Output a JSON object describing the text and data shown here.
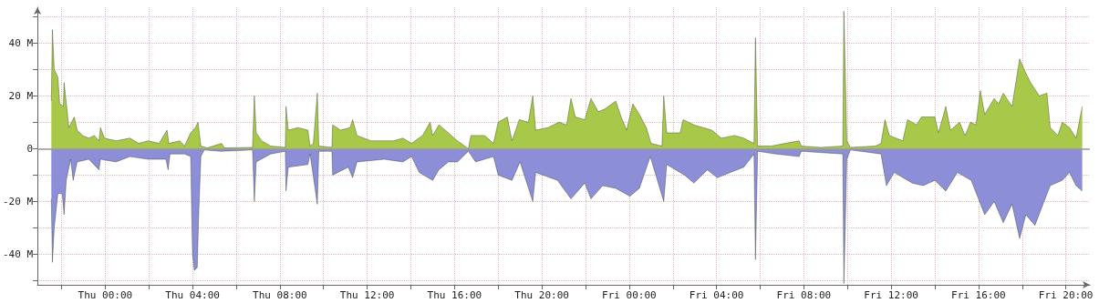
{
  "chart_data": {
    "type": "area",
    "xlim": [
      "--01-14T20:54",
      "--01-16T21:06"
    ],
    "ylim": [
      -51.5,
      53.5
    ],
    "xticks": [
      {
        "value": "--01-14T22:00",
        "label": null
      },
      {
        "value": "--01-15T00:00",
        "label": "Thu 00:00"
      },
      {
        "value": "--01-15T02:00",
        "label": null
      },
      {
        "value": "--01-15T04:00",
        "label": "Thu 04:00"
      },
      {
        "value": "--01-15T06:00",
        "label": null
      },
      {
        "value": "--01-15T08:00",
        "label": "Thu 08:00"
      },
      {
        "value": "--01-15T10:00",
        "label": null
      },
      {
        "value": "--01-15T12:00",
        "label": "Thu 12:00"
      },
      {
        "value": "--01-15T14:00",
        "label": null
      },
      {
        "value": "--01-15T16:00",
        "label": "Thu 16:00"
      },
      {
        "value": "--01-15T18:00",
        "label": null
      },
      {
        "value": "--01-15T20:00",
        "label": "Thu 20:00"
      },
      {
        "value": "--01-15T22:00",
        "label": null
      },
      {
        "value": "--01-16T00:00",
        "label": "Fri 00:00"
      },
      {
        "value": "--01-16T02:00",
        "label": null
      },
      {
        "value": "--01-16T04:00",
        "label": "Fri 04:00"
      },
      {
        "value": "--01-16T06:00",
        "label": null
      },
      {
        "value": "--01-16T08:00",
        "label": "Fri 08:00"
      },
      {
        "value": "--01-16T10:00",
        "label": null
      },
      {
        "value": "--01-16T12:00",
        "label": "Fri 12:00"
      },
      {
        "value": "--01-16T14:00",
        "label": null
      },
      {
        "value": "--01-16T16:00",
        "label": "Fri 16:00"
      },
      {
        "value": "--01-16T18:00",
        "label": null
      },
      {
        "value": "--01-16T20:00",
        "label": "Fri 20:00"
      }
    ],
    "yticks": [
      {
        "value": -50,
        "label": null
      },
      {
        "value": -40,
        "label": "-40 M"
      },
      {
        "value": -30,
        "label": null
      },
      {
        "value": -20,
        "label": "-20 M"
      },
      {
        "value": -10,
        "label": null
      },
      {
        "value": 0,
        "label": "0"
      },
      {
        "value": 10,
        "label": null
      },
      {
        "value": 20,
        "label": "20 M"
      },
      {
        "value": 30,
        "label": null
      },
      {
        "value": 40,
        "label": "40 M"
      },
      {
        "value": 50,
        "label": null
      }
    ],
    "grid": true,
    "series": [
      {
        "color": "#a8c84a",
        "x": [
          "--01-14T21:32",
          "--01-14T21:35",
          "--01-14T21:40",
          "--01-14T21:50",
          "--01-14T21:55",
          "--01-14T22:05",
          "--01-14T22:07",
          "--01-14T22:15",
          "--01-14T22:20",
          "--01-14T22:35",
          "--01-14T22:43",
          "--01-14T22:58",
          "--01-14T23:15",
          "--01-14T23:30",
          "--01-14T23:43",
          "--01-14T23:47",
          "--01-14T23:58",
          "--01-15T00:30",
          "--01-15T01:08",
          "--01-15T01:32",
          "--01-15T01:58",
          "--01-15T02:28",
          "--01-15T02:50",
          "--01-15T02:55",
          "--01-15T03:25",
          "--01-15T03:38",
          "--01-15T03:55",
          "--01-15T04:08",
          "--01-15T04:15",
          "--01-15T04:23",
          "--01-15T04:40",
          "--01-15T05:20",
          "--01-15T05:28",
          "--01-15T06:45",
          "--01-15T06:50",
          "--01-15T06:55",
          "--01-15T07:10",
          "--01-15T07:35",
          "--01-15T08:15",
          "--01-15T08:17",
          "--01-15T08:23",
          "--01-15T08:50",
          "--01-15T09:17",
          "--01-15T09:23",
          "--01-15T09:32",
          "--01-15T09:43",
          "--01-15T09:47",
          "--01-15T10:23",
          "--01-15T10:25",
          "--01-15T10:47",
          "--01-15T11:13",
          "--01-15T11:20",
          "--01-15T11:32",
          "--01-15T12:10",
          "--01-15T13:13",
          "--01-15T13:38",
          "--01-15T14:02",
          "--01-15T14:32",
          "--01-15T14:53",
          "--01-15T15:00",
          "--01-15T15:17",
          "--01-15T15:43",
          "--01-15T16:08",
          "--01-15T16:38",
          "--01-15T16:45",
          "--01-15T17:23",
          "--01-15T17:47",
          "--01-15T18:00",
          "--01-15T18:25",
          "--01-15T18:38",
          "--01-15T18:58",
          "--01-15T19:23",
          "--01-15T19:35",
          "--01-15T19:43",
          "--01-15T20:17",
          "--01-15T20:47",
          "--01-15T21:08",
          "--01-15T21:20",
          "--01-15T21:32",
          "--01-15T21:58",
          "--01-15T22:15",
          "--01-15T22:35",
          "--01-15T22:53",
          "--01-15T23:23",
          "--01-15T23:38",
          "--01-15T23:53",
          "--01-16T00:10",
          "--01-16T00:28",
          "--01-16T00:47",
          "--01-16T01:00",
          "--01-16T01:30",
          "--01-16T01:35",
          "--01-16T01:43",
          "--01-16T02:20",
          "--01-16T02:28",
          "--01-16T02:58",
          "--01-16T03:47",
          "--01-16T04:13",
          "--01-16T04:50",
          "--01-16T05:15",
          "--01-16T05:43",
          "--01-16T05:47",
          "--01-16T05:53",
          "--01-16T06:30",
          "--01-16T07:08",
          "--01-16T07:47",
          "--01-16T07:53",
          "--01-16T08:47",
          "--01-16T09:47",
          "--01-16T09:50",
          "--01-16T09:58",
          "--01-16T10:08",
          "--01-16T11:17",
          "--01-16T11:32",
          "--01-16T11:43",
          "--01-16T11:55",
          "--01-16T12:32",
          "--01-16T12:45",
          "--01-16T13:10",
          "--01-16T13:23",
          "--01-16T14:00",
          "--01-16T14:10",
          "--01-16T14:30",
          "--01-16T14:43",
          "--01-16T15:08",
          "--01-16T15:23",
          "--01-16T15:38",
          "--01-16T15:53",
          "--01-16T16:05",
          "--01-16T16:17",
          "--01-16T16:43",
          "--01-16T16:55",
          "--01-16T17:08",
          "--01-16T17:32",
          "--01-16T17:53",
          "--01-16T18:05",
          "--01-16T18:23",
          "--01-16T18:47",
          "--01-16T19:08",
          "--01-16T19:17",
          "--01-16T19:38",
          "--01-16T19:50",
          "--01-16T20:10",
          "--01-16T20:28",
          "--01-16T20:45"
        ],
        "values": [
          18,
          45,
          30,
          27,
          17,
          16,
          25,
          15,
          8,
          12,
          7,
          5,
          4,
          5,
          3,
          8,
          4,
          3,
          4,
          2,
          3,
          2,
          7,
          2,
          3,
          1,
          6,
          8,
          10,
          1,
          0.3,
          2,
          0.3,
          0.5,
          20,
          6,
          3,
          1,
          0.5,
          16,
          7,
          8,
          7,
          1,
          2,
          21,
          1,
          0.5,
          9,
          7,
          8,
          11,
          5,
          3,
          3,
          4,
          2,
          5,
          10,
          5,
          9,
          6,
          3,
          0,
          5,
          5,
          2,
          10,
          12,
          3,
          11,
          10,
          20,
          7,
          8,
          10,
          9,
          19,
          12,
          11,
          19,
          14,
          15,
          18,
          12,
          7,
          17,
          13,
          8,
          2,
          1,
          20,
          6,
          6,
          11,
          9,
          7,
          4,
          5,
          4,
          2,
          42,
          1,
          1,
          2,
          3,
          1,
          0.5,
          1,
          52,
          3,
          0.5,
          1,
          2,
          11,
          5,
          3,
          11,
          9,
          12,
          12,
          6,
          16,
          7,
          10,
          5,
          10,
          9,
          22,
          13,
          19,
          17,
          21,
          16,
          34,
          30,
          25,
          20,
          21,
          8,
          5,
          10,
          8,
          4,
          16
        ]
      },
      {
        "color": "#8c8fd8",
        "x": [
          "--01-14T21:32",
          "--01-14T21:35",
          "--01-14T21:40",
          "--01-14T21:50",
          "--01-14T22:02",
          "--01-14T22:07",
          "--01-14T22:13",
          "--01-14T22:25",
          "--01-14T22:32",
          "--01-14T22:43",
          "--01-14T23:15",
          "--01-14T23:43",
          "--01-14T23:47",
          "--01-15T00:30",
          "--01-15T01:08",
          "--01-15T01:58",
          "--01-15T02:47",
          "--01-15T02:53",
          "--01-15T02:58",
          "--01-15T03:38",
          "--01-15T03:55",
          "--01-15T04:00",
          "--01-15T04:05",
          "--01-15T04:13",
          "--01-15T04:17",
          "--01-15T04:23",
          "--01-15T04:32",
          "--01-15T05:17",
          "--01-15T06:45",
          "--01-15T06:50",
          "--01-15T06:55",
          "--01-15T07:35",
          "--01-15T08:15",
          "--01-15T08:17",
          "--01-15T08:23",
          "--01-15T09:17",
          "--01-15T09:23",
          "--01-15T09:43",
          "--01-15T09:47",
          "--01-15T10:23",
          "--01-15T10:25",
          "--01-15T11:08",
          "--01-15T11:20",
          "--01-15T11:32",
          "--01-15T12:47",
          "--01-15T13:38",
          "--01-15T14:02",
          "--01-15T14:23",
          "--01-15T15:00",
          "--01-15T15:17",
          "--01-15T15:43",
          "--01-15T16:08",
          "--01-15T16:38",
          "--01-15T16:58",
          "--01-15T17:47",
          "--01-15T18:00",
          "--01-15T18:38",
          "--01-15T19:00",
          "--01-15T19:35",
          "--01-15T19:43",
          "--01-15T20:43",
          "--01-15T21:20",
          "--01-15T21:58",
          "--01-15T22:15",
          "--01-15T22:47",
          "--01-15T23:23",
          "--01-16T00:02",
          "--01-16T00:28",
          "--01-16T00:58",
          "--01-16T01:35",
          "--01-16T01:43",
          "--01-16T02:32",
          "--01-16T02:58",
          "--01-16T03:35",
          "--01-16T04:02",
          "--01-16T04:38",
          "--01-16T05:15",
          "--01-16T05:43",
          "--01-16T05:47",
          "--01-16T05:53",
          "--01-16T06:43",
          "--01-16T07:47",
          "--01-16T07:53",
          "--01-16T09:47",
          "--01-16T09:50",
          "--01-16T09:58",
          "--01-16T10:08",
          "--01-16T11:32",
          "--01-16T11:47",
          "--01-16T12:08",
          "--01-16T12:58",
          "--01-16T13:28",
          "--01-16T14:00",
          "--01-16T14:30",
          "--01-16T15:02",
          "--01-16T15:40",
          "--01-16T16:17",
          "--01-16T16:43",
          "--01-16T17:08",
          "--01-16T17:32",
          "--01-16T17:53",
          "--01-16T18:10",
          "--01-16T18:35",
          "--01-16T19:00",
          "--01-16T19:17",
          "--01-16T19:50",
          "--01-16T20:10",
          "--01-16T20:28",
          "--01-16T20:45"
        ],
        "values": [
          -19,
          -43,
          -30,
          -17,
          -17,
          -25,
          -12,
          -4,
          -12,
          -5,
          -4,
          -8,
          -4,
          -5,
          -3,
          -4,
          -4,
          -8,
          -2,
          -2,
          -3,
          -40,
          -46,
          -45,
          -25,
          -3,
          -0.5,
          -1,
          -0.5,
          -20,
          -5,
          -2,
          -1,
          -16,
          -7,
          -6,
          -2,
          -21,
          -1,
          -1,
          -10,
          -7,
          -11,
          -5,
          -4,
          -5,
          -3,
          -9,
          -12,
          -8,
          -5,
          -5,
          -1,
          -5,
          -3,
          -10,
          -12,
          -5,
          -20,
          -9,
          -12,
          -19,
          -13,
          -19,
          -14,
          -15,
          -18,
          -15,
          -3,
          -20,
          -6,
          -10,
          -13,
          -8,
          -11,
          -9,
          -7,
          -2,
          -42,
          -1,
          -2,
          -3,
          -1,
          -2,
          -51,
          -4,
          -0.5,
          -2,
          -14,
          -9,
          -13,
          -14,
          -12,
          -16,
          -9,
          -12,
          -25,
          -20,
          -28,
          -21,
          -34,
          -25,
          -29,
          -20,
          -14,
          -12,
          -9,
          -14,
          -16
        ]
      }
    ]
  }
}
